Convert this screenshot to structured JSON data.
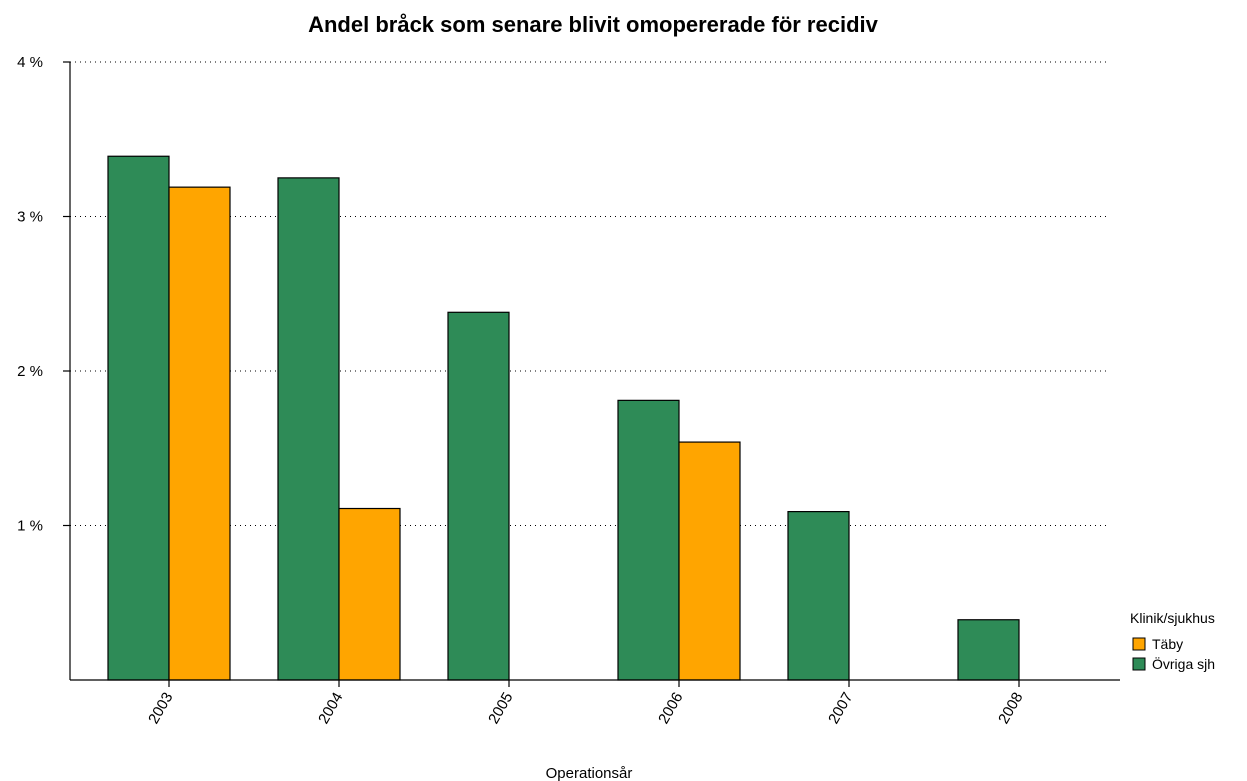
{
  "chart_data": {
    "type": "bar",
    "title": "Andel bråck som senare blivit omopererade för recidiv",
    "xlabel": "Operationsår",
    "ylabel": "",
    "categories": [
      "2003",
      "2004",
      "2005",
      "2006",
      "2007",
      "2008"
    ],
    "series": [
      {
        "name": "Övriga sjh",
        "color": "#2e8b57",
        "values": [
          3.39,
          3.25,
          2.38,
          1.81,
          1.09,
          0.39
        ]
      },
      {
        "name": "Täby",
        "color": "#ffa500",
        "values": [
          3.19,
          1.11,
          0,
          1.54,
          0,
          0
        ]
      }
    ],
    "ylim": [
      0,
      4
    ],
    "yticks": [
      {
        "value": 1,
        "label": "1 %"
      },
      {
        "value": 2,
        "label": "2 %"
      },
      {
        "value": 3,
        "label": "3 %"
      },
      {
        "value": 4,
        "label": "4 %"
      }
    ],
    "grid": "horizontal-dotted",
    "legend": {
      "title": "Klinik/sjukhus",
      "placement": "right",
      "entries": [
        {
          "name": "Täby",
          "color": "#ffa500"
        },
        {
          "name": "Övriga sjh",
          "color": "#2e8b57"
        }
      ]
    }
  }
}
